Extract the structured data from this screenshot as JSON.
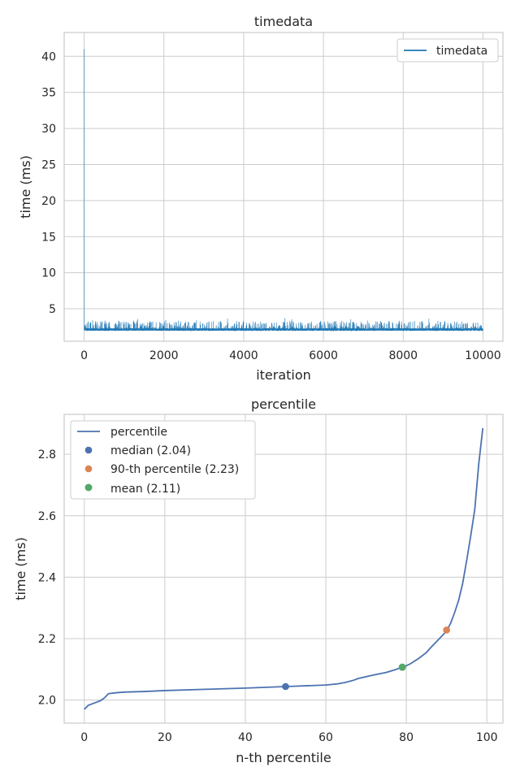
{
  "chart_data": [
    {
      "type": "line",
      "title": "timedata",
      "xlabel": "iteration",
      "ylabel": "time (ms)",
      "xlim": [
        -500,
        10500
      ],
      "ylim": [
        0.5,
        43.3
      ],
      "xticks": [
        0,
        2000,
        4000,
        6000,
        8000,
        10000
      ],
      "yticks": [
        5,
        10,
        15,
        20,
        25,
        30,
        35,
        40
      ],
      "grid": true,
      "legend": "upper-right",
      "series": [
        {
          "name": "timedata",
          "color": "#1f77b4",
          "n_points": 10000,
          "first_value": 41.0,
          "baseline": 1.95,
          "spike_max": 3.7
        }
      ]
    },
    {
      "type": "line",
      "title": "percentile",
      "xlabel": "n-th percentile",
      "ylabel": "time (ms)",
      "xlim": [
        -5,
        104
      ],
      "ylim": [
        1.925,
        2.93
      ],
      "xticks": [
        0,
        20,
        40,
        60,
        80,
        100
      ],
      "yticks": [
        2.0,
        2.2,
        2.4,
        2.6,
        2.8
      ],
      "grid": true,
      "legend": "upper-left",
      "series": [
        {
          "name": "percentile",
          "color": "#4c72b0",
          "x": [
            0,
            1,
            2,
            3,
            4,
            5,
            6,
            8,
            10,
            15,
            20,
            30,
            40,
            50,
            60,
            63,
            65,
            67,
            68,
            70,
            72,
            75,
            77,
            79,
            80,
            81,
            83,
            85,
            86,
            88,
            90,
            91,
            92,
            93,
            94,
            95,
            96,
            97,
            98,
            99
          ],
          "y": [
            1.97,
            1.983,
            1.988,
            1.993,
            1.998,
            2.007,
            2.021,
            2.024,
            2.026,
            2.028,
            2.031,
            2.035,
            2.039,
            2.044,
            2.049,
            2.053,
            2.058,
            2.065,
            2.07,
            2.076,
            2.082,
            2.09,
            2.098,
            2.107,
            2.112,
            2.118,
            2.135,
            2.155,
            2.17,
            2.197,
            2.225,
            2.25,
            2.285,
            2.325,
            2.38,
            2.455,
            2.535,
            2.62,
            2.77,
            2.885
          ]
        },
        {
          "name": "median (2.04)",
          "color": "#4c72b0",
          "marker": "octagon",
          "x": [
            50
          ],
          "y": [
            2.044
          ]
        },
        {
          "name": "90-th percentile (2.23)",
          "color": "#dd8452",
          "marker": "octagon",
          "x": [
            90
          ],
          "y": [
            2.228
          ]
        },
        {
          "name": "mean (2.11)",
          "color": "#55a868",
          "marker": "circle",
          "x": [
            79
          ],
          "y": [
            2.107
          ]
        }
      ]
    }
  ]
}
